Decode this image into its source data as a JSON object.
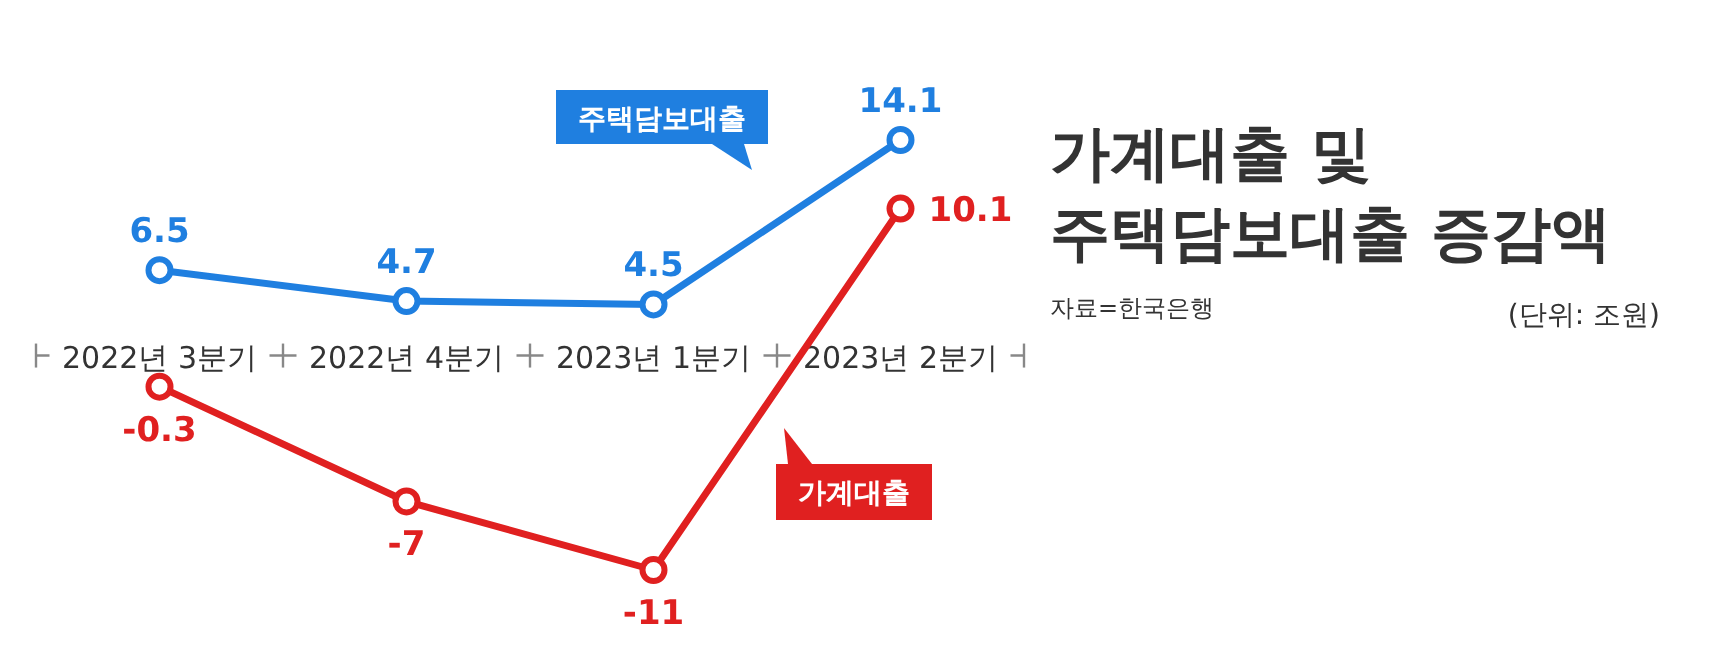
{
  "chart_data": {
    "type": "line",
    "title": "가계대출 및\n주택담보대출 증감액",
    "annotations": [
      "자료=한국은행",
      "(단위: 조원)"
    ],
    "categories": [
      "2022년 3분기",
      "2022년 4분기",
      "2023년 1분기",
      "2023년 2분기"
    ],
    "series": [
      {
        "name": "주택담보대출",
        "color": "#1f7fe0",
        "values": [
          6.5,
          4.7,
          4.5,
          14.1
        ]
      },
      {
        "name": "가계대출",
        "color": "#e02020",
        "values": [
          -0.3,
          -7,
          -11,
          10.1
        ]
      }
    ],
    "marker": "circle",
    "data_labels": true,
    "legend": "right"
  }
}
